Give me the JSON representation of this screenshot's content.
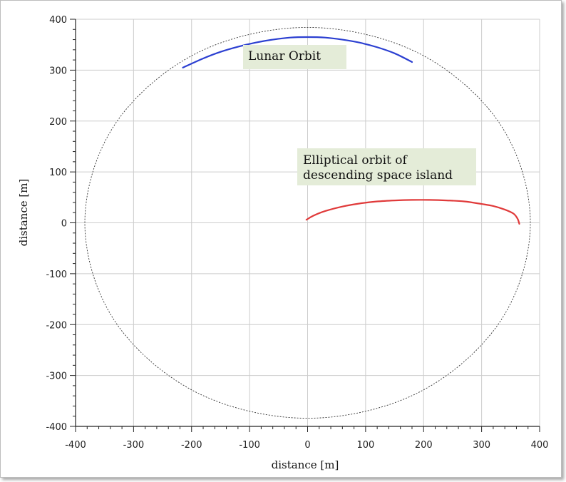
{
  "chart_data": {
    "type": "line",
    "title": "",
    "xlabel": "distance [m]",
    "ylabel": "distance [m]",
    "xlim": [
      -400,
      400
    ],
    "ylim": [
      -400,
      400
    ],
    "x_ticks": [
      -400,
      -300,
      -200,
      -100,
      0,
      100,
      200,
      300,
      400
    ],
    "y_ticks": [
      -400,
      -300,
      -200,
      -100,
      0,
      100,
      200,
      300,
      400
    ],
    "grid": true,
    "colors": {
      "lunar": "#2b3fd1",
      "ellipse": "#e03a3a",
      "reference_circle": "#333333",
      "grid": "#cccccc"
    },
    "series": [
      {
        "name": "",
        "color": "#2b3fd1",
        "x": [
          -215,
          -180,
          -150,
          -120,
          -90,
          -60,
          -30,
          0,
          30,
          60,
          90,
          120,
          150,
          180
        ],
        "y": [
          305,
          323,
          336,
          346,
          354,
          360,
          364,
          365,
          364,
          360,
          354,
          345,
          333,
          316
        ]
      },
      {
        "name": "",
        "color": "#e03a3a",
        "x": [
          -2,
          10,
          30,
          60,
          90,
          120,
          150,
          180,
          210,
          240,
          270,
          300,
          320,
          340,
          355,
          362,
          365
        ],
        "y": [
          6,
          14,
          23,
          32,
          38,
          42,
          44,
          45,
          45,
          44,
          42,
          37,
          33,
          26,
          18,
          8,
          -2
        ]
      },
      {
        "name": "",
        "color": "#333333",
        "dashed": true,
        "x": [
          384,
          333,
          192,
          0,
          -192,
          -333,
          -384,
          -333,
          -192,
          0,
          192,
          333,
          384
        ],
        "y": [
          0,
          192,
          333,
          384,
          333,
          192,
          0,
          -192,
          -333,
          -384,
          -333,
          -192,
          0
        ]
      }
    ],
    "annotations": [
      {
        "text": "Lunar Orbit"
      },
      {
        "text": "Elliptical orbit of descending space island"
      }
    ]
  },
  "annotations": {
    "lunar": "Lunar Orbit",
    "ellipse_line1": "Elliptical orbit of",
    "ellipse_line2": "descending space island"
  }
}
